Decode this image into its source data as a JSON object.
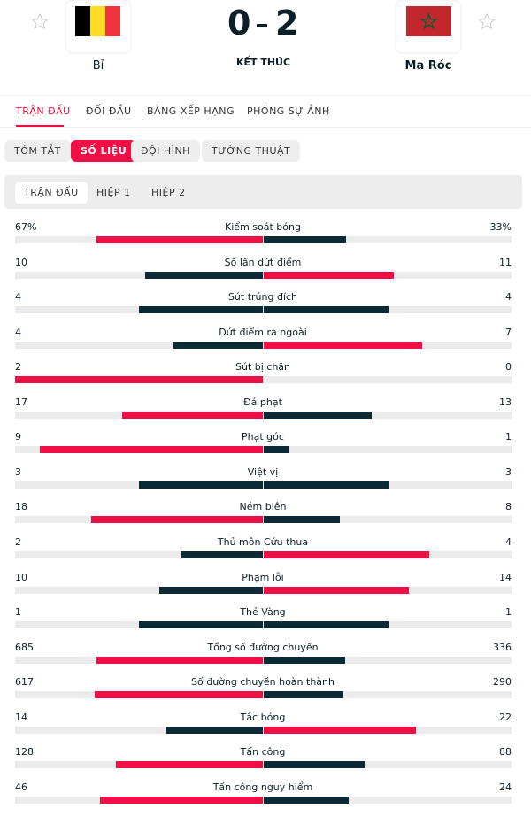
{
  "header": {
    "home": {
      "name": "Bỉ"
    },
    "away": {
      "name": "Ma Róc"
    },
    "score": {
      "home": 0,
      "away": 2
    },
    "status": "KẾT THÚC"
  },
  "tabs": [
    "TRẬN ĐẤU",
    "ĐỐI ĐẦU",
    "BẢNG XẾP HẠNG",
    "PHÓNG SỰ ẢNH"
  ],
  "active_tab": 0,
  "sub_tabs": [
    "TÓM TẮT",
    "SỐ LIỆU",
    "ĐỘI HÌNH",
    "TƯỜNG THUẬT"
  ],
  "active_sub_tab": 1,
  "period_tabs": [
    "TRẬN ĐẤU",
    "HIỆP 1",
    "HIỆP 2"
  ],
  "active_period": 0,
  "stats": [
    {
      "name": "Kiểm soát bóng",
      "home": 67,
      "away": 33,
      "home_label": "67%",
      "away_label": "33%"
    },
    {
      "name": "Số lần dứt điểm",
      "home": 10,
      "away": 11
    },
    {
      "name": "Sút trúng đích",
      "home": 4,
      "away": 4
    },
    {
      "name": "Dứt điểm ra ngoài",
      "home": 4,
      "away": 7
    },
    {
      "name": "Sút bị chặn",
      "home": 2,
      "away": 0
    },
    {
      "name": "Đá phạt",
      "home": 17,
      "away": 13
    },
    {
      "name": "Phạt góc",
      "home": 9,
      "away": 1
    },
    {
      "name": "Việt vị",
      "home": 3,
      "away": 3
    },
    {
      "name": "Ném biên",
      "home": 18,
      "away": 8
    },
    {
      "name": "Thủ môn Cứu thua",
      "home": 2,
      "away": 4
    },
    {
      "name": "Phạm lỗi",
      "home": 10,
      "away": 14
    },
    {
      "name": "Thẻ Vàng",
      "home": 1,
      "away": 1
    },
    {
      "name": "Tổng số đường chuyền",
      "home": 685,
      "away": 336
    },
    {
      "name": "Số đường chuyền hoàn thành",
      "home": 617,
      "away": 290
    },
    {
      "name": "Tắc bóng",
      "home": 14,
      "away": 22
    },
    {
      "name": "Tấn công",
      "home": 128,
      "away": 88
    },
    {
      "name": "Tấn công nguy hiểm",
      "home": 46,
      "away": 24
    }
  ]
}
